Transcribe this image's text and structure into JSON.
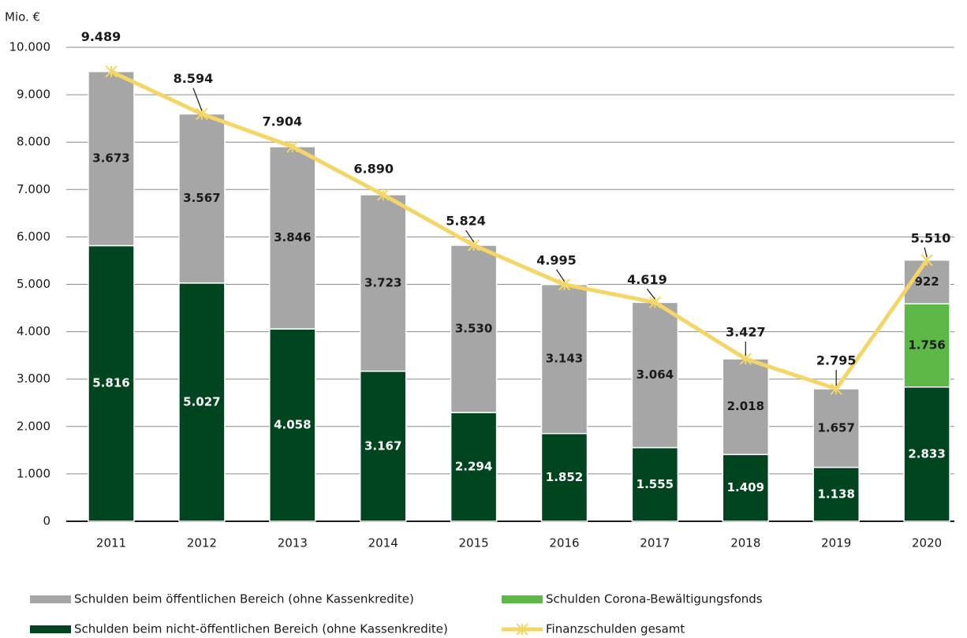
{
  "chart_data": {
    "type": "stacked-bar-line",
    "y_label": "Mio. €",
    "categories": [
      "2011",
      "2012",
      "2013",
      "2014",
      "2015",
      "2016",
      "2017",
      "2018",
      "2019",
      "2020"
    ],
    "series": [
      {
        "name": "Schulden beim nicht-öffentlichen Bereich (ohne Kassenkredite)",
        "color": "#00451f",
        "label_color": "#ffffff",
        "values": [
          5816,
          5027,
          4058,
          3167,
          2294,
          1852,
          1555,
          1409,
          1138,
          2833
        ],
        "value_labels": [
          "5.816",
          "5.027",
          "4.058",
          "3.167",
          "2.294",
          "1.852",
          "1.555",
          "1.409",
          "1.138",
          "2.833"
        ]
      },
      {
        "name": "Schulden Corona-Bewältigungsfonds",
        "color": "#5db847",
        "label_color": "#1a1a1a",
        "values": [
          null,
          null,
          null,
          null,
          null,
          null,
          null,
          null,
          null,
          1756
        ],
        "value_labels": [
          null,
          null,
          null,
          null,
          null,
          null,
          null,
          null,
          null,
          "1.756"
        ]
      },
      {
        "name": "Schulden beim öffentlichen Bereich (ohne Kassenkredite)",
        "color": "#a6a6a6",
        "label_color": "#1a1a1a",
        "values": [
          3673,
          3567,
          3846,
          3723,
          3530,
          3143,
          3064,
          2018,
          1657,
          922
        ],
        "value_labels": [
          "3.673",
          "3.567",
          "3.846",
          "3.723",
          "3.530",
          "3.143",
          "3.064",
          "2.018",
          "1.657",
          "922"
        ]
      },
      {
        "name": "Finanzschulden gesamt",
        "color": "#f3d665",
        "type": "line",
        "values": [
          9489,
          8594,
          7904,
          6890,
          5824,
          4995,
          4619,
          3427,
          2795,
          5510
        ],
        "value_labels": [
          "9.489",
          "8.594",
          "7.904",
          "6.890",
          "5.824",
          "4.995",
          "4.619",
          "3.427",
          "2.795",
          "5.510"
        ]
      }
    ],
    "ylim": [
      0,
      10000
    ],
    "yticks": [
      0,
      {
        "value": 1000,
        "label": "1.000"
      },
      {
        "value": 2000,
        "label": "2.000"
      },
      {
        "value": 3000,
        "label": "3.000"
      },
      {
        "value": 4000,
        "label": "4.000"
      },
      {
        "value": 5000,
        "label": "5.000"
      },
      {
        "value": 6000,
        "label": "6.000"
      },
      {
        "value": 7000,
        "label": "7.000"
      },
      {
        "value": 8000,
        "label": "8.000"
      },
      {
        "value": 9000,
        "label": "9.000"
      },
      {
        "value": 10000,
        "label": "10.000"
      }
    ],
    "grid": true
  }
}
